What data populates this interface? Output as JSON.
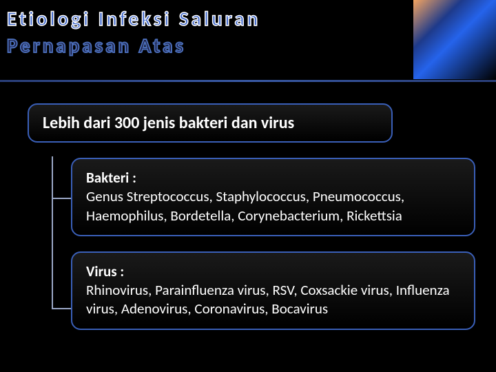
{
  "title": {
    "line1": "Etiologi Infeksi Saluran",
    "line2": "Pernapasan Atas"
  },
  "parent": {
    "text": "Lebih dari 300 jenis bakteri dan virus"
  },
  "children": [
    {
      "label": "Bakteri :",
      "body": "Genus Streptococcus, Staphylococcus, Pneumococcus, Haemophilus, Bordetella, Corynebacterium, Rickettsia"
    },
    {
      "label": "Virus :",
      "body": "Rhinovirus, Parainfluenza virus, RSV, Coxsackie virus, Influenza virus, Adenovirus, Coronavirus, Bocavirus"
    }
  ],
  "colors": {
    "background": "#000000",
    "border": "#3a5fb8",
    "text": "#ffffff",
    "connector": "#9ba8c8",
    "title_fill": "#4169cc"
  }
}
